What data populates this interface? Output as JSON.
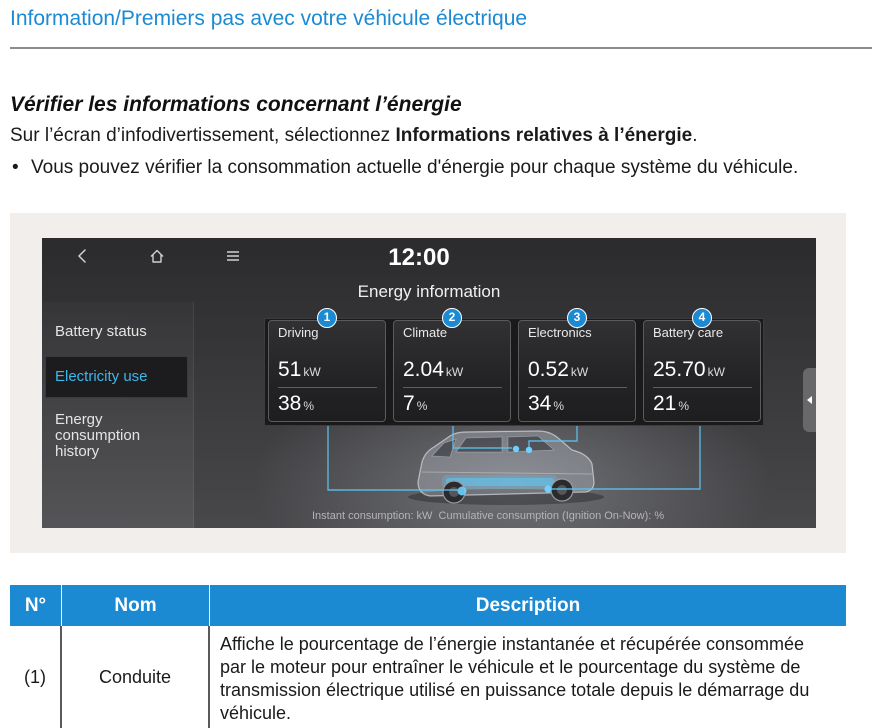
{
  "header": {
    "title": "Information/Premiers pas avec votre véhicule électrique"
  },
  "section": {
    "heading": "Vérifier les informations concernant l’énergie",
    "intro_prefix": "Sur l’écran d’infodivertissement, sélectionnez ",
    "intro_bold": "Informations relatives à l’énergie",
    "intro_suffix": ".",
    "bullet_marker": "•",
    "bullet_text": "Vous pouvez vérifier la consommation actuelle d'énergie pour chaque système du véhicule."
  },
  "screen": {
    "top_bar": {
      "back_icon": "chevron-left-icon",
      "home_icon": "home-icon",
      "menu_icon": "menu-icon",
      "time": "12:00"
    },
    "title": "Energy information",
    "sidebar": [
      {
        "label": "Battery status",
        "selected": false
      },
      {
        "label": "Electricity use",
        "selected": true
      },
      {
        "label": "Energy consumption history",
        "selected": false
      }
    ],
    "cards": [
      {
        "number": "1",
        "label": "Driving",
        "power": "51",
        "power_unit": "kW",
        "share": "38",
        "share_unit": "%"
      },
      {
        "number": "2",
        "label": "Climate",
        "power": "2.04",
        "power_unit": "kW",
        "share": "7",
        "share_unit": "%"
      },
      {
        "number": "3",
        "label": "Electronics",
        "power": "0.52",
        "power_unit": "kW",
        "share": "34",
        "share_unit": "%"
      },
      {
        "number": "4",
        "label": "Battery care",
        "power": "25.70",
        "power_unit": "kW",
        "share": "21",
        "share_unit": "%"
      }
    ],
    "caption": "Instant consumption: kW  Cumulative consumption (Ignition On-Now): %",
    "side_handle_icon": "chevron-left-icon"
  },
  "table": {
    "headers": [
      "N°",
      "Nom",
      "Description"
    ],
    "rows": [
      {
        "no": "(1)",
        "name": "Conduite",
        "description": "Affiche le pourcentage de l’énergie instantanée et récupérée consommée par le moteur pour entraîner le véhicule et le pourcentage du système de transmission électrique utilisé en puissance totale depuis le démarrage du véhicule."
      }
    ]
  },
  "colors": {
    "accent": "#1b8ad3",
    "screen_highlight_text": "#3db7ea",
    "energy_flow": "#5ec6f5",
    "figure_background": "#f2eeeb",
    "table_header_text": "#ffffff"
  }
}
